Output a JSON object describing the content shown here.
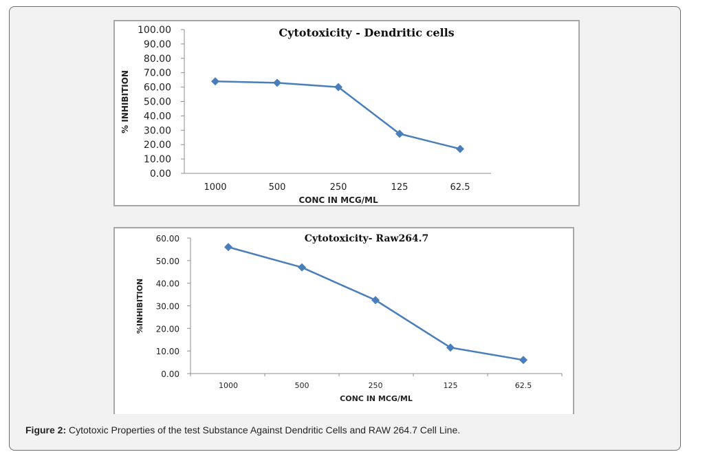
{
  "figure": {
    "caption_label": "Figure 2:",
    "caption_text": " Cytotoxic Properties of the test Substance Against Dendritic Cells and RAW 264.7 Cell Line."
  },
  "colors": {
    "series": "#4a7ebb",
    "axis": "#8c8c8c"
  },
  "chart_data": [
    {
      "type": "line",
      "title": "Cytotoxicity  - Dendritic cells",
      "xlabel": "CONC IN MCG/ML",
      "ylabel": "% INHIBITION",
      "categories": [
        "1000",
        "500",
        "250",
        "125",
        "62.5"
      ],
      "series": [
        {
          "values": [
            64.0,
            63.0,
            60.0,
            27.5,
            17.0
          ]
        }
      ],
      "ylim": [
        0,
        100
      ],
      "yticks": [
        "0.00",
        "10.00",
        "20.00",
        "30.00",
        "40.00",
        "50.00",
        "60.00",
        "70.00",
        "80.00",
        "90.00",
        "100.00"
      ],
      "grid": false,
      "legend": "none"
    },
    {
      "type": "line",
      "title": "Cytotoxicity- Raw264.7",
      "xlabel": "CONC IN MCG/ML",
      "ylabel": "%INHIBITION",
      "categories": [
        "1000",
        "500",
        "250",
        "125",
        "62.5"
      ],
      "series": [
        {
          "values": [
            56.0,
            47.0,
            32.5,
            11.5,
            6.0
          ]
        }
      ],
      "ylim": [
        0,
        60
      ],
      "yticks": [
        "0.00",
        "10.00",
        "20.00",
        "30.00",
        "40.00",
        "50.00",
        "60.00"
      ],
      "grid": false,
      "legend": "none"
    }
  ]
}
